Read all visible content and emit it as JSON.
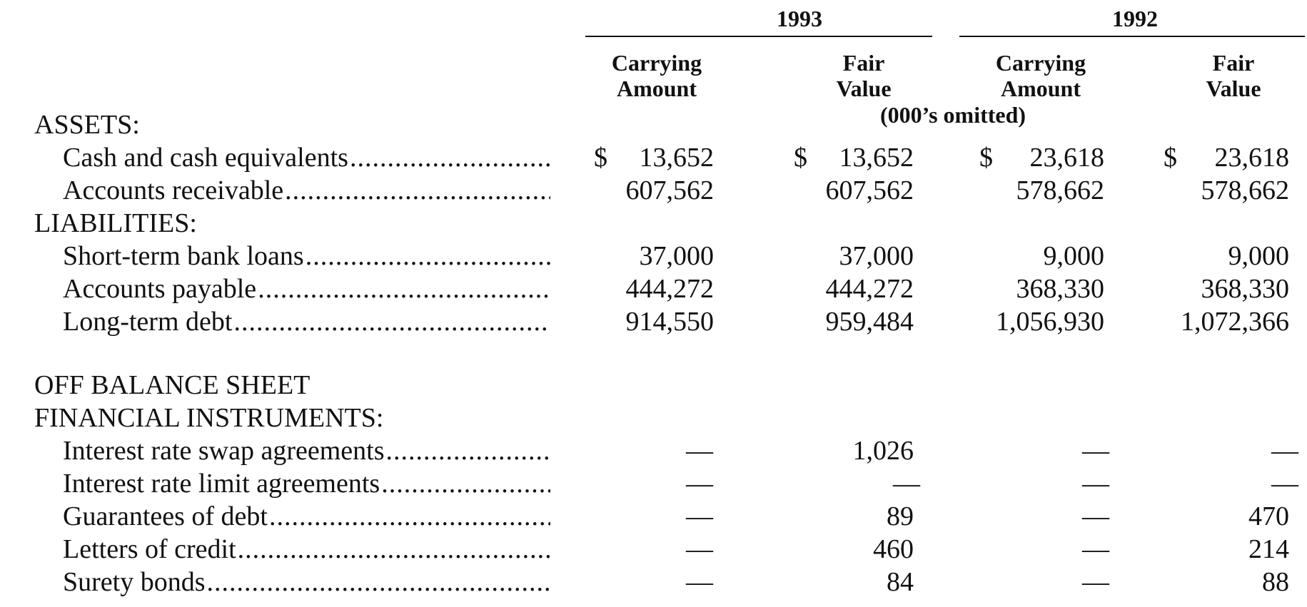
{
  "header": {
    "year_1993": "1993",
    "year_1992": "1992",
    "carrying": "Carrying",
    "amount": "Amount",
    "fair": "Fair",
    "value": "Value",
    "omitted": "(000’s omitted)"
  },
  "currency_symbol": "$",
  "dots": "....................................................................................................",
  "sections": {
    "assets": "ASSETS:",
    "liabilities": "LIABILITIES:",
    "off_balance_1": "OFF BALANCE SHEET",
    "off_balance_2": "FINANCIAL INSTRUMENTS:"
  },
  "rows": [
    {
      "label": "Cash and cash equivalents",
      "c93": "13,652",
      "f93": "13,652",
      "c92": "23,618",
      "f92": "23,618"
    },
    {
      "label": "Accounts receivable",
      "c93": "607,562",
      "f93": "607,562",
      "c92": "578,662",
      "f92": "578,662"
    },
    {
      "label": "Short-term bank loans",
      "c93": "37,000",
      "f93": "37,000",
      "c92": "9,000",
      "f92": "9,000"
    },
    {
      "label": "Accounts payable",
      "c93": "444,272",
      "f93": "444,272",
      "c92": "368,330",
      "f92": "368,330"
    },
    {
      "label": "Long-term debt",
      "c93": "914,550",
      "f93": "959,484",
      "c92": "1,056,930",
      "f92": "1,072,366"
    },
    {
      "label": "Interest rate swap agreements",
      "c93": "—",
      "f93": "1,026",
      "c92": "—",
      "f92": "—"
    },
    {
      "label": "Interest rate limit agreements",
      "c93": "—",
      "f93": "—",
      "c92": "—",
      "f92": "—"
    },
    {
      "label": "Guarantees of debt",
      "c93": "—",
      "f93": "89",
      "c92": "—",
      "f92": "470"
    },
    {
      "label": "Letters of credit",
      "c93": "—",
      "f93": "460",
      "c92": "—",
      "f92": "214"
    },
    {
      "label": "Surety bonds",
      "c93": "—",
      "f93": "84",
      "c92": "—",
      "f92": "88"
    }
  ]
}
